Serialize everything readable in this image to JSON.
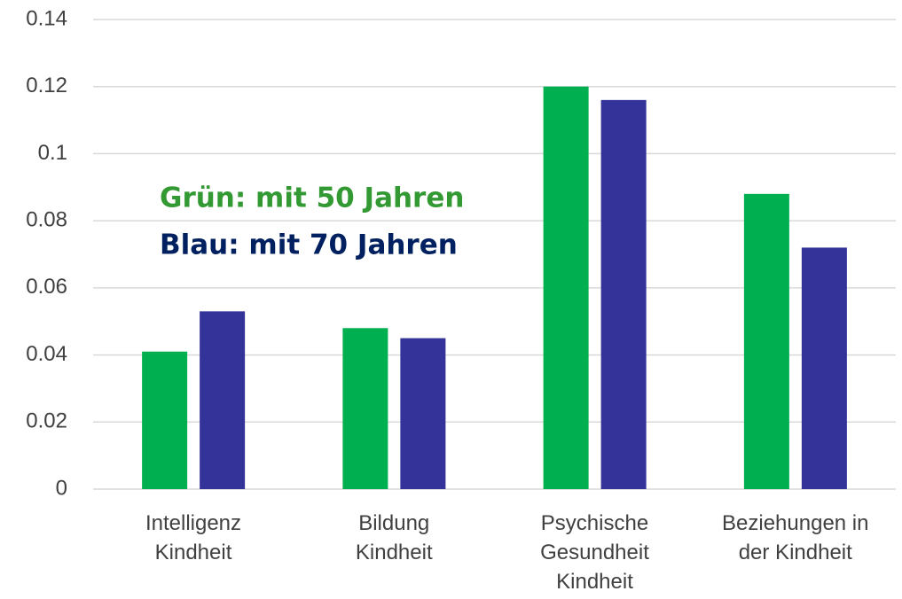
{
  "chart_data": {
    "type": "bar",
    "categories": [
      "Intelligenz\nKindheit",
      "Bildung\nKindheit",
      "Psychische\nGesundheit\nKindheit",
      "Beziehungen in\nder Kindheit"
    ],
    "series": [
      {
        "name": "Grün: mit 50 Jahren",
        "color": "#00b050",
        "label_color": "#339933",
        "values": [
          0.041,
          0.048,
          0.12,
          0.088
        ]
      },
      {
        "name": "Blau: mit 70 Jahren",
        "color": "#333399",
        "label_color": "#002060",
        "values": [
          0.053,
          0.045,
          0.116,
          0.072
        ]
      }
    ],
    "ylim": [
      0,
      0.14
    ],
    "yticks": [
      0,
      0.02,
      0.04,
      0.06,
      0.08,
      0.1,
      0.12,
      0.14
    ],
    "grid": true
  }
}
